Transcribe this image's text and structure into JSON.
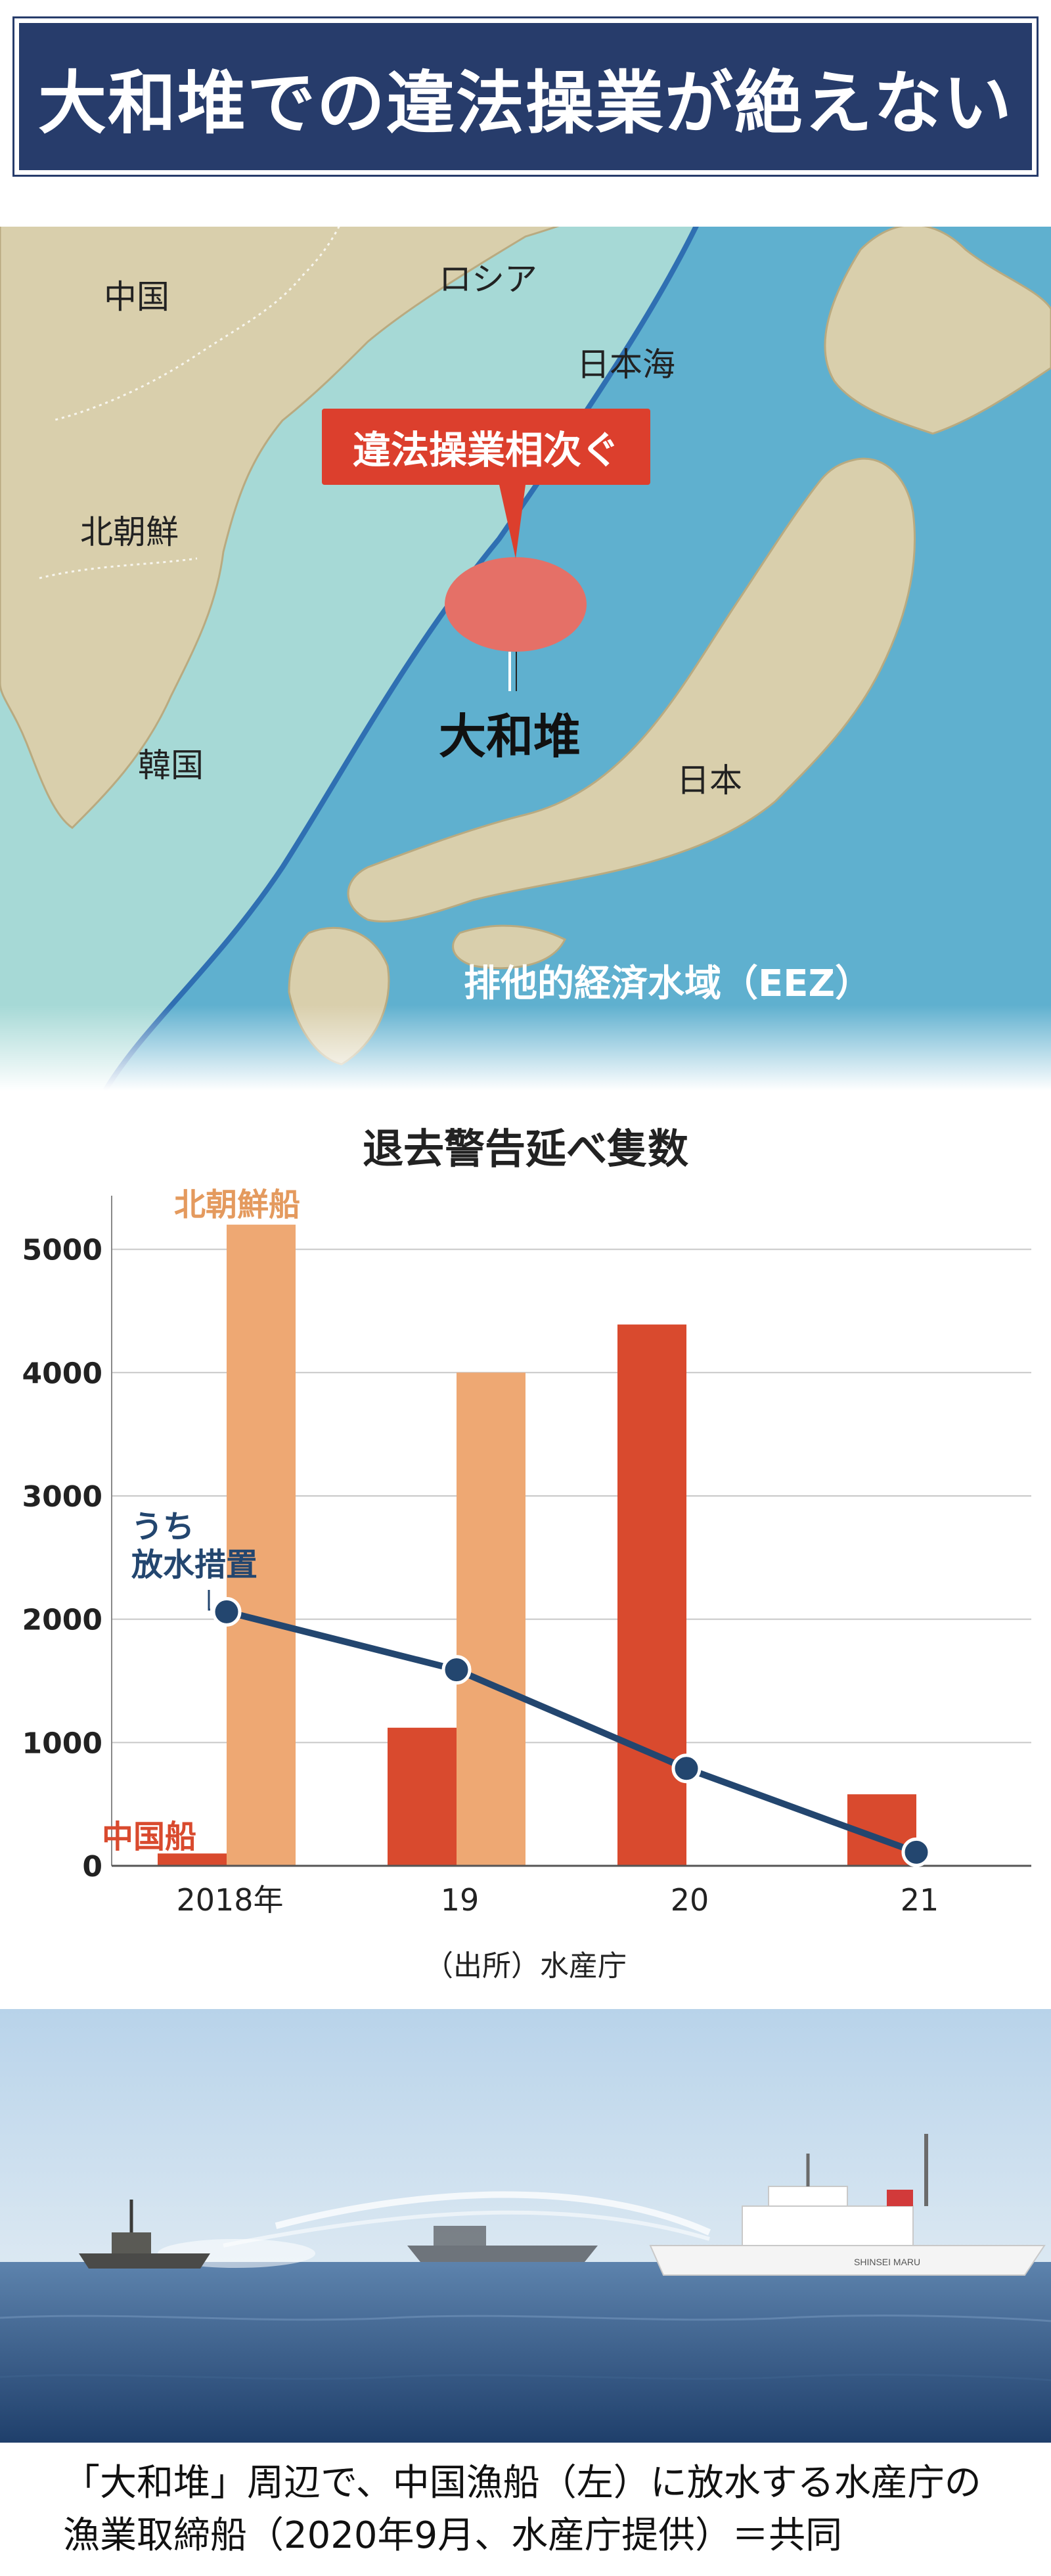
{
  "header": {
    "title": "大和堆での違法操業が絶えない"
  },
  "map": {
    "labels": {
      "china": "中国",
      "russia": "ロシア",
      "sea_of_japan": "日本海",
      "north_korea": "北朝鮮",
      "south_korea": "韓国",
      "japan": "日本",
      "yamato_bank": "大和堆",
      "eez": "排他的経済水域（EEZ）"
    },
    "callout": "違法操業相次ぐ",
    "colors": {
      "land": "#d9cfac",
      "near_sea": "#a6d9d6",
      "eez_sea": "#5fb0cf",
      "border": "#2f6fb2",
      "highlight": "#e57067"
    }
  },
  "chart": {
    "title": "退去警告延べ隻数",
    "source": "（出所）水産庁"
  },
  "chart_data": {
    "type": "bar",
    "categories": [
      "2018年",
      "19",
      "20",
      "21"
    ],
    "ylim": [
      0,
      5000
    ],
    "yticks": [
      "0",
      "1000",
      "2000",
      "3000",
      "4000",
      "5000"
    ],
    "grid": true,
    "series": [
      {
        "name": "中国船",
        "values": [
          100,
          1120,
          4390,
          580
        ],
        "color": "#d94a2e"
      },
      {
        "name": "北朝鮮船",
        "values": [
          5200,
          4000,
          0,
          0
        ],
        "color": "#eea873"
      }
    ],
    "line_series": {
      "name": "うち\n放水措置",
      "values": [
        2060,
        1590,
        790,
        110
      ],
      "color": "#23466f"
    }
  },
  "photo": {
    "caption_line1": "「大和堆」周辺で、中国漁船（左）に放水する水産庁の",
    "caption_line2": "漁業取締船（2020年9月、水産庁提供）＝共同",
    "ship_name": "SHINSEI MARU"
  }
}
